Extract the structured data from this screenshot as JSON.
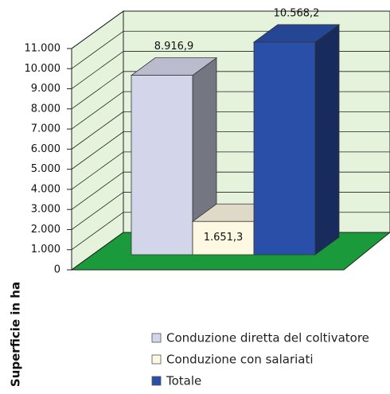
{
  "chart_data": {
    "type": "bar",
    "y_label": "Superficie in ha",
    "series": [
      {
        "name": "Conduzione diretta del coltivatore",
        "color": "#d3d6ea",
        "values": [
          8916.9
        ],
        "value_labels": [
          "8.916,9"
        ]
      },
      {
        "name": "Conduzione con salariati",
        "color": "#fdf8e2",
        "values": [
          1651.3
        ],
        "value_labels": [
          "1.651,3"
        ]
      },
      {
        "name": "Totale",
        "color": "#2a4fa8",
        "values": [
          10568.2
        ],
        "value_labels": [
          "10.568,2"
        ]
      }
    ],
    "ylim": [
      0,
      11000
    ],
    "yticks": [
      0,
      {
        "value": 1000,
        "label": "1.000"
      },
      {
        "value": 2000,
        "label": "2.000"
      },
      {
        "value": 3000,
        "label": "3.000"
      },
      {
        "value": 4000,
        "label": "4.000"
      },
      {
        "value": 5000,
        "label": "5.000"
      },
      {
        "value": 6000,
        "label": "6.000"
      },
      {
        "value": 7000,
        "label": "7.000"
      },
      {
        "value": 8000,
        "label": "8.000"
      },
      {
        "value": 9000,
        "label": "9.000"
      },
      {
        "value": 10000,
        "label": "10.000"
      },
      {
        "value": 11000,
        "label": "11.000"
      }
    ],
    "grid": true,
    "legend": "bottom"
  }
}
